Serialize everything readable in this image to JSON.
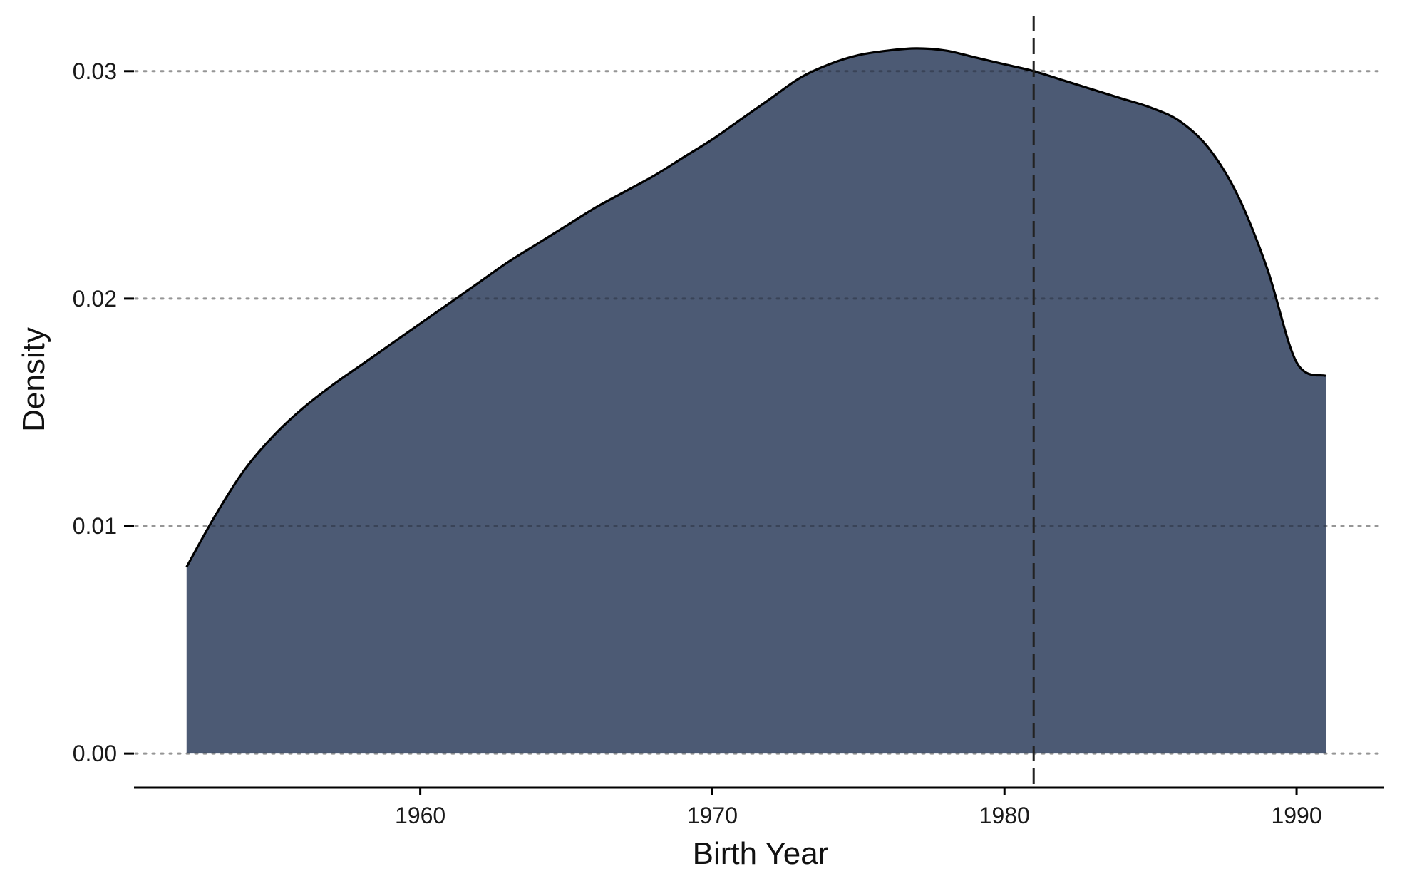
{
  "chart_data": {
    "type": "area",
    "title": "",
    "xlabel": "Birth Year",
    "ylabel": "Density",
    "xlim": [
      1950.2,
      1993
    ],
    "ylim": [
      -0.0015,
      0.0325
    ],
    "x_ticks": [
      1960,
      1970,
      1980,
      1990
    ],
    "x_tick_labels": [
      "1960",
      "1970",
      "1980",
      "1990"
    ],
    "y_ticks": [
      0.0,
      0.01,
      0.02,
      0.03
    ],
    "y_tick_labels": [
      "0.00",
      "0.01",
      "0.02",
      "0.03"
    ],
    "grid": "horizontal dotted",
    "legend": "none",
    "colors": {
      "fill": "#4c5a74",
      "outline": "#000000",
      "grid": "#c8c8c8",
      "reference_line": "#222222"
    },
    "reference_line": {
      "x": 1981.0,
      "style": "dashed"
    },
    "series": [
      {
        "x": [
          1952,
          1953,
          1954,
          1955,
          1956,
          1957,
          1958,
          1959,
          1960,
          1961,
          1962,
          1963,
          1964,
          1965,
          1966,
          1967,
          1968,
          1969,
          1970,
          1971,
          1972,
          1973,
          1974,
          1975,
          1976,
          1977,
          1978,
          1979,
          1980,
          1981,
          1982,
          1983,
          1984,
          1985,
          1986,
          1987,
          1988,
          1989,
          1990,
          1991
        ],
        "y": [
          0.0082,
          0.0105,
          0.0125,
          0.014,
          0.0152,
          0.0162,
          0.0171,
          0.018,
          0.0189,
          0.0198,
          0.0207,
          0.0216,
          0.0224,
          0.0232,
          0.024,
          0.0247,
          0.0254,
          0.0262,
          0.027,
          0.0279,
          0.0288,
          0.0297,
          0.0303,
          0.0307,
          0.0309,
          0.031,
          0.0309,
          0.0306,
          0.0303,
          0.03,
          0.0296,
          0.0292,
          0.0288,
          0.0284,
          0.0278,
          0.0266,
          0.0245,
          0.0213,
          0.0172,
          0.0166
        ]
      }
    ]
  }
}
